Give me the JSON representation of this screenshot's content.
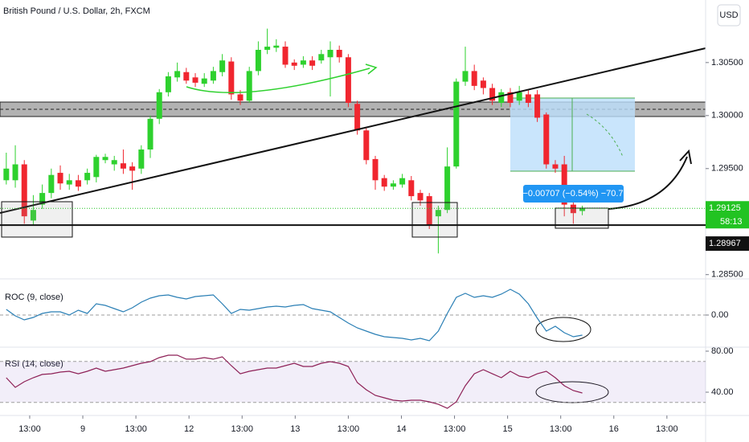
{
  "chart_data": [
    {
      "type": "candlestick",
      "title": "British Pound / U.S. Dollar, 2h, FXCM",
      "currency_button": "USD",
      "up_color": "#2ed12e",
      "down_color": "#f0262f",
      "open": [
        1.2939,
        1.2939,
        1.2954,
        1.2901,
        1.2916,
        1.2927,
        1.2946,
        1.2935,
        1.2939,
        1.2939,
        1.2942,
        1.2958,
        1.2954,
        1.2955,
        1.2952,
        1.295,
        1.2968,
        1.2997,
        1.3022,
        1.3036,
        1.3041,
        1.3036,
        1.303,
        1.3033,
        1.3041,
        1.3051,
        1.302,
        1.3014,
        1.3042,
        1.3062,
        1.3064,
        1.3065,
        1.305,
        1.3048,
        1.3052,
        1.3052,
        1.3055,
        1.3062,
        1.3055,
        1.3011,
        1.2986,
        1.2959,
        1.2941,
        1.2933,
        1.2935,
        1.2939,
        1.2927,
        1.2924,
        1.2905,
        1.2911,
        1.2952,
        1.3032,
        1.3042,
        1.3033,
        1.3026,
        1.3012,
        1.3022,
        1.3014,
        1.302,
        1.302,
        1.3001,
        1.2954,
        1.2954,
        1.2916,
        1.291
      ],
      "high": [
        1.2965,
        1.2972,
        1.2958,
        1.2925,
        1.2935,
        1.295,
        1.2953,
        1.2945,
        1.2944,
        1.295,
        1.2963,
        1.2964,
        1.2962,
        1.2968,
        1.2956,
        1.2972,
        1.3,
        1.3025,
        1.3041,
        1.305,
        1.3045,
        1.304,
        1.304,
        1.3046,
        1.3058,
        1.3055,
        1.3024,
        1.3046,
        1.307,
        1.3082,
        1.3072,
        1.307,
        1.3053,
        1.3056,
        1.3056,
        1.3062,
        1.307,
        1.3066,
        1.3058,
        1.3014,
        1.2988,
        1.2962,
        1.2944,
        1.2939,
        1.2945,
        1.2943,
        1.293,
        1.2927,
        1.2915,
        1.297,
        1.3035,
        1.3065,
        1.3048,
        1.3036,
        1.303,
        1.3025,
        1.3026,
        1.3028,
        1.3024,
        1.3024,
        1.3003,
        1.2958,
        1.2962,
        1.292,
        1.2915
      ],
      "low": [
        1.2935,
        1.2932,
        1.2898,
        1.2896,
        1.2912,
        1.2922,
        1.293,
        1.293,
        1.2929,
        1.2935,
        1.2937,
        1.2955,
        1.2948,
        1.2945,
        1.293,
        1.2945,
        1.296,
        1.2992,
        1.3018,
        1.3032,
        1.303,
        1.3027,
        1.3027,
        1.303,
        1.3037,
        1.3015,
        1.301,
        1.3012,
        1.3038,
        1.3058,
        1.306,
        1.3045,
        1.3043,
        1.3045,
        1.3043,
        1.3049,
        1.3018,
        1.305,
        1.3008,
        1.2982,
        1.2954,
        1.293,
        1.2929,
        1.293,
        1.2932,
        1.292,
        1.2915,
        1.2893,
        1.287,
        1.2908,
        1.295,
        1.3028,
        1.3024,
        1.302,
        1.301,
        1.3008,
        1.3008,
        1.301,
        1.3008,
        1.2994,
        1.295,
        1.2946,
        1.2905,
        1.2898,
        1.2906
      ],
      "close": [
        1.295,
        1.2954,
        1.2905,
        1.2911,
        1.2927,
        1.2944,
        1.2936,
        1.2939,
        1.2933,
        1.2946,
        1.2961,
        1.2961,
        1.2958,
        1.295,
        1.2948,
        1.2968,
        1.2997,
        1.3022,
        1.3037,
        1.3042,
        1.3033,
        1.3031,
        1.3035,
        1.3042,
        1.3052,
        1.302,
        1.3014,
        1.3042,
        1.3062,
        1.3065,
        1.3066,
        1.3048,
        1.3047,
        1.3052,
        1.3047,
        1.3058,
        1.3062,
        1.3055,
        1.3012,
        1.2986,
        1.2958,
        1.2939,
        1.2933,
        1.2936,
        1.2941,
        1.2924,
        1.292,
        1.2897,
        1.2911,
        1.2952,
        1.3032,
        1.3042,
        1.3028,
        1.3026,
        1.3014,
        1.3022,
        1.3012,
        1.3022,
        1.3012,
        1.2998,
        1.2954,
        1.295,
        1.2916,
        1.2908,
        1.2913
      ],
      "xlim": [
        -0.7,
        77.7
      ],
      "xticks": [
        {
          "value": 2.6,
          "label": "13:00"
        },
        {
          "value": 8.5,
          "label": "9"
        },
        {
          "value": 14.4,
          "label": "13:00"
        },
        {
          "value": 20.3,
          "label": "12"
        },
        {
          "value": 26.2,
          "label": "13:00"
        },
        {
          "value": 32.1,
          "label": "13"
        },
        {
          "value": 38,
          "label": "13:00"
        },
        {
          "value": 43.9,
          "label": "14"
        },
        {
          "value": 49.8,
          "label": "13:00"
        },
        {
          "value": 55.7,
          "label": "15"
        },
        {
          "value": 61.6,
          "label": "13:00"
        },
        {
          "value": 67.5,
          "label": "16"
        },
        {
          "value": 73.4,
          "label": "13:00"
        }
      ],
      "ylim": [
        1.2846,
        1.3109
      ],
      "yticks": [
        {
          "value": 1.305,
          "label": "1.30500"
        },
        {
          "value": 1.3,
          "label": "1.30000"
        },
        {
          "value": 1.295,
          "label": "1.29500"
        },
        {
          "value": 1.285,
          "label": "1.28500"
        }
      ],
      "last_price": {
        "value": 1.29125,
        "label": "1.29125",
        "color": "#22c322"
      },
      "countdown": "58:13",
      "level": {
        "value": 1.28967,
        "label": "1.28967"
      },
      "measure_label": "−0.00707 (−0.54%) −70.7"
    },
    {
      "type": "line",
      "title": "ROC (9, close)",
      "color": "#2a7fb5",
      "values": [
        0.35,
        -0.05,
        -0.3,
        -0.15,
        0.1,
        0.2,
        0.2,
        0,
        0.3,
        0.1,
        0.7,
        0.6,
        0.4,
        0.2,
        0.45,
        0.8,
        1.05,
        1.2,
        1.25,
        1.1,
        1.0,
        1.15,
        1.2,
        1.25,
        0.7,
        0.1,
        0.35,
        0.3,
        0.4,
        0.5,
        0.55,
        0.5,
        0.6,
        0.65,
        0.4,
        0.3,
        0.2,
        -0.15,
        -0.5,
        -0.8,
        -1.0,
        -1.2,
        -1.35,
        -1.4,
        -1.45,
        -1.55,
        -1.45,
        -1.6,
        -1.0,
        0.1,
        1.1,
        1.35,
        1.1,
        1.2,
        1.1,
        1.3,
        1.6,
        1.3,
        0.7,
        -0.2,
        -1.0,
        -0.7,
        -1.1,
        -1.35,
        -1.25
      ],
      "ylim": [
        -2,
        2.25
      ],
      "yticks": [
        {
          "value": 0,
          "label": "0.00"
        }
      ]
    },
    {
      "type": "line",
      "title": "RSI (14, close)",
      "color": "#8e2157",
      "band": [
        30,
        70
      ],
      "band_color": "#7e57c2",
      "values": [
        54.1,
        44.7,
        50.2,
        54.1,
        57.3,
        58.0,
        59.6,
        60.4,
        58.0,
        60.4,
        63.5,
        60.4,
        62.0,
        63.5,
        65.9,
        68.2,
        69.8,
        73.7,
        76.1,
        76.1,
        72.2,
        72.2,
        73.7,
        72.2,
        74.5,
        65.9,
        58.0,
        60.4,
        62.0,
        63.5,
        63.5,
        65.9,
        68.2,
        65.1,
        65.1,
        68.2,
        69.8,
        68.2,
        65.1,
        49.4,
        42.4,
        36.9,
        34.5,
        32.2,
        31.4,
        32.2,
        32.2,
        30.6,
        28.2,
        24.3,
        30.6,
        46.3,
        58.0,
        62.0,
        58.0,
        54.1,
        60.4,
        55.7,
        54.1,
        58.0,
        60.4,
        54.1,
        46.3,
        41.6,
        39.2
      ],
      "ylim": [
        17.3,
        83.9
      ],
      "yticks": [
        {
          "value": 80,
          "label": "80.00"
        },
        {
          "value": 40,
          "label": "40.00"
        }
      ]
    }
  ]
}
